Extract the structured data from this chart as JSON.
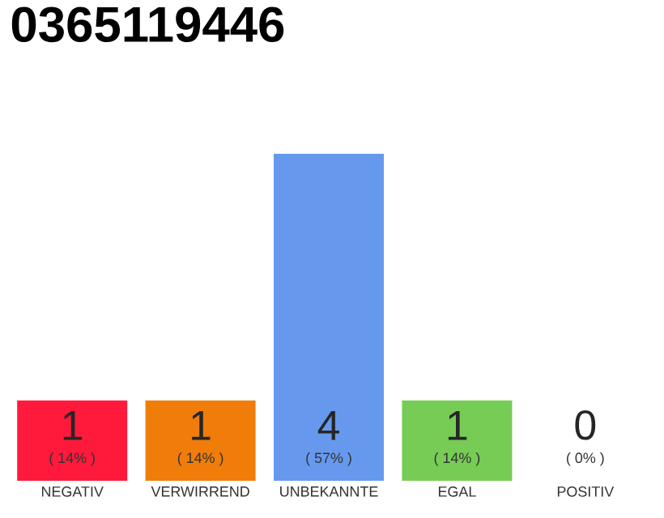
{
  "chart_data": {
    "type": "bar",
    "title": "0365119446",
    "categories": [
      "NEGATIV",
      "VERWIRREND",
      "UNBEKANNTE",
      "EGAL",
      "POSITIV"
    ],
    "values": [
      14,
      14,
      57,
      14,
      0
    ],
    "colors": [
      "#ff1a3c",
      "#f07d0a",
      "#6699ee",
      "#77cc55",
      "#eeeeee"
    ],
    "value_labels": [
      "( 14% )",
      "( 14% )",
      "( 57% )",
      "( 14% )",
      "( 0% )"
    ],
    "annotations": [
      "1",
      "1",
      "4",
      "1",
      "0"
    ]
  }
}
